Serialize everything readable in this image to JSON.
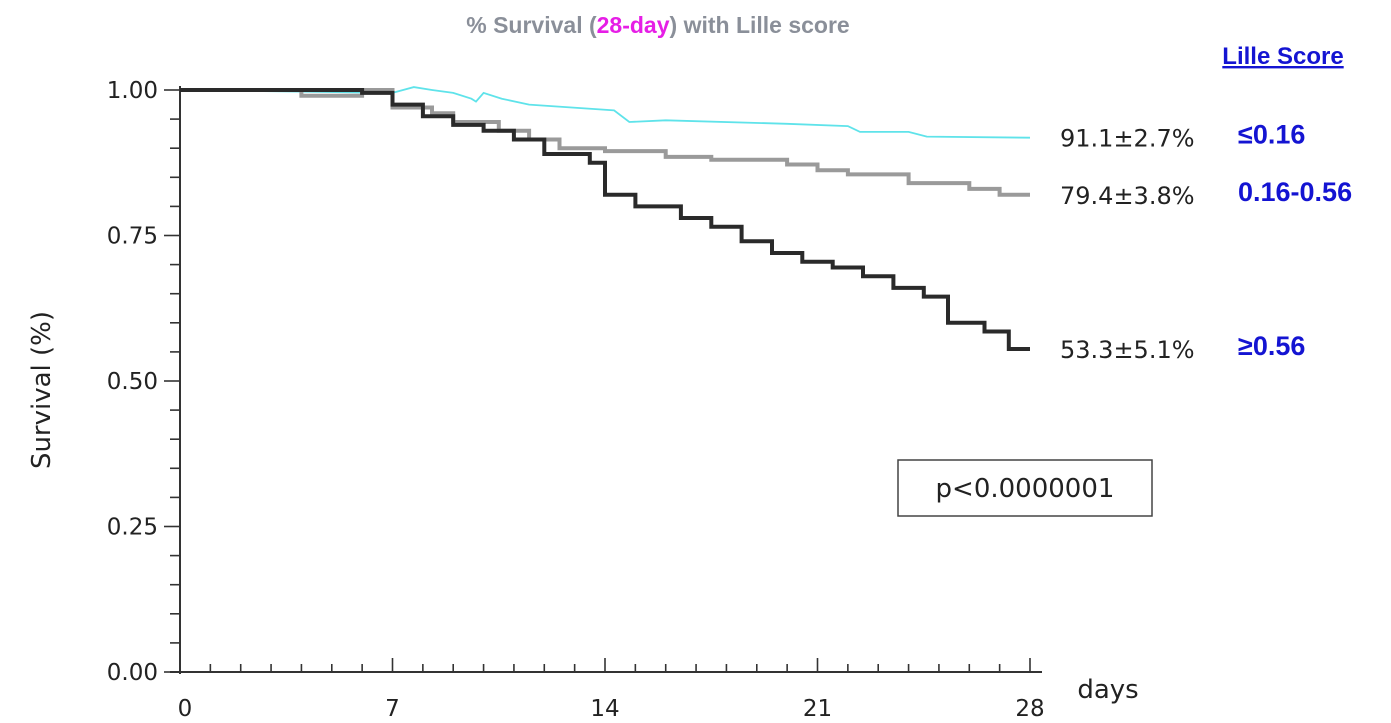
{
  "chart_data": {
    "type": "line",
    "title_parts": [
      "% Survival (",
      "28-day",
      ") with Lille score"
    ],
    "xlabel": "days",
    "ylabel": "Survival (%)",
    "xlim": [
      0,
      28
    ],
    "ylim": [
      0,
      1
    ],
    "x_ticks": [
      0,
      7,
      14,
      21,
      28
    ],
    "x_tick_labels": [
      "0",
      "7",
      "14",
      "21",
      "28"
    ],
    "y_ticks": [
      0,
      0.25,
      0.5,
      0.75,
      1.0
    ],
    "y_tick_labels": [
      "0.00",
      "0.25",
      "0.50",
      "0.75",
      "1.00"
    ],
    "legend_title": "Lille Score",
    "annotation": "p<0.0000001",
    "series": [
      {
        "name": "≤0.16",
        "end_label": "91.1±2.7%",
        "color": "#5fe3ea",
        "points": [
          [
            0,
            1.0
          ],
          [
            7.0,
            0.995
          ],
          [
            7.7,
            1.005
          ],
          [
            8.3,
            1.0
          ],
          [
            9.0,
            0.995
          ],
          [
            9.6,
            0.985
          ],
          [
            9.75,
            0.98
          ],
          [
            10.0,
            0.995
          ],
          [
            10.6,
            0.985
          ],
          [
            11.5,
            0.975
          ],
          [
            14.3,
            0.965
          ],
          [
            14.8,
            0.945
          ],
          [
            16.0,
            0.948
          ],
          [
            20.0,
            0.942
          ],
          [
            22.0,
            0.938
          ],
          [
            22.4,
            0.928
          ],
          [
            24.0,
            0.928
          ],
          [
            24.6,
            0.92
          ],
          [
            28.0,
            0.918
          ]
        ]
      },
      {
        "name": "0.16-0.56",
        "end_label": "79.4±3.8%",
        "color": "#9a9a9a",
        "points": [
          [
            0,
            1.0
          ],
          [
            4.0,
            1.0
          ],
          [
            4.0,
            0.99
          ],
          [
            6.0,
            0.99
          ],
          [
            6.0,
            1.0
          ],
          [
            7.0,
            1.0
          ],
          [
            7.0,
            0.97
          ],
          [
            8.3,
            0.97
          ],
          [
            8.3,
            0.96
          ],
          [
            9.0,
            0.96
          ],
          [
            9.0,
            0.945
          ],
          [
            10.5,
            0.945
          ],
          [
            10.5,
            0.93
          ],
          [
            11.5,
            0.93
          ],
          [
            11.5,
            0.915
          ],
          [
            12.5,
            0.915
          ],
          [
            12.5,
            0.9
          ],
          [
            14.0,
            0.9
          ],
          [
            14.0,
            0.895
          ],
          [
            16.0,
            0.895
          ],
          [
            16.0,
            0.885
          ],
          [
            17.5,
            0.885
          ],
          [
            17.5,
            0.88
          ],
          [
            20.0,
            0.88
          ],
          [
            20.0,
            0.872
          ],
          [
            21.0,
            0.872
          ],
          [
            21.0,
            0.862
          ],
          [
            22.0,
            0.862
          ],
          [
            22.0,
            0.855
          ],
          [
            24.0,
            0.855
          ],
          [
            24.0,
            0.84
          ],
          [
            26.0,
            0.84
          ],
          [
            26.0,
            0.83
          ],
          [
            27.0,
            0.83
          ],
          [
            27.0,
            0.82
          ],
          [
            28.0,
            0.82
          ]
        ]
      },
      {
        "name": "≥0.56",
        "end_label": "53.3±5.1%",
        "color": "#2a2a2a",
        "points": [
          [
            0,
            1.0
          ],
          [
            6.0,
            1.0
          ],
          [
            6.0,
            0.995
          ],
          [
            7.0,
            0.995
          ],
          [
            7.0,
            0.975
          ],
          [
            8.0,
            0.975
          ],
          [
            8.0,
            0.955
          ],
          [
            9.0,
            0.955
          ],
          [
            9.0,
            0.94
          ],
          [
            10.0,
            0.94
          ],
          [
            10.0,
            0.93
          ],
          [
            11.0,
            0.93
          ],
          [
            11.0,
            0.915
          ],
          [
            12.0,
            0.915
          ],
          [
            12.0,
            0.89
          ],
          [
            13.5,
            0.89
          ],
          [
            13.5,
            0.875
          ],
          [
            14.0,
            0.875
          ],
          [
            14.0,
            0.82
          ],
          [
            15.0,
            0.82
          ],
          [
            15.0,
            0.8
          ],
          [
            16.5,
            0.8
          ],
          [
            16.5,
            0.78
          ],
          [
            17.5,
            0.78
          ],
          [
            17.5,
            0.765
          ],
          [
            18.5,
            0.765
          ],
          [
            18.5,
            0.74
          ],
          [
            19.5,
            0.74
          ],
          [
            19.5,
            0.72
          ],
          [
            20.5,
            0.72
          ],
          [
            20.5,
            0.705
          ],
          [
            21.5,
            0.705
          ],
          [
            21.5,
            0.695
          ],
          [
            22.5,
            0.695
          ],
          [
            22.5,
            0.68
          ],
          [
            23.5,
            0.68
          ],
          [
            23.5,
            0.66
          ],
          [
            24.5,
            0.66
          ],
          [
            24.5,
            0.645
          ],
          [
            25.3,
            0.645
          ],
          [
            25.3,
            0.6
          ],
          [
            26.5,
            0.6
          ],
          [
            26.5,
            0.585
          ],
          [
            27.3,
            0.585
          ],
          [
            27.3,
            0.555
          ],
          [
            28.0,
            0.555
          ]
        ]
      }
    ]
  }
}
